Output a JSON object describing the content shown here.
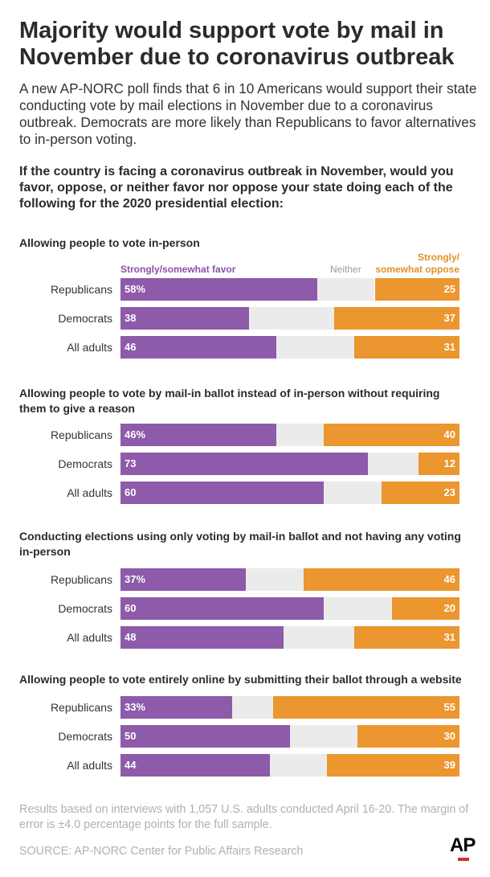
{
  "title": "Majority would support vote by mail in November due to coronavirus outbreak",
  "intro": "A new AP-NORC poll finds that 6 in 10 Americans would support their state conducting vote by mail elections in November due to a coronavirus outbreak. Democrats are more likely than Republicans to favor alternatives to in-person voting.",
  "question": "If the country is facing a coronavirus outbreak in November, would you favor, oppose, or neither favor nor oppose your state doing each of the following for the 2020 presidential election:",
  "legend": {
    "favor": "Strongly/somewhat favor",
    "neither": "Neither",
    "oppose_line1": "Strongly/",
    "oppose_line2": "somewhat oppose"
  },
  "colors": {
    "favor": "#8e5aaa",
    "neither": "#ebebeb",
    "oppose": "#eb962f"
  },
  "chart_data": {
    "type": "bar",
    "stacked": true,
    "orientation": "horizontal",
    "scale_max": 100,
    "series_names": [
      "Strongly/somewhat favor",
      "Neither",
      "Strongly/somewhat oppose"
    ],
    "panels": [
      {
        "title": "Allowing people to vote in-person",
        "rows": [
          {
            "label": "Republicans",
            "favor": 58,
            "neither": 17,
            "oppose": 25,
            "favor_label": "58%",
            "oppose_label": "25"
          },
          {
            "label": "Democrats",
            "favor": 38,
            "neither": 25,
            "oppose": 37,
            "favor_label": "38",
            "oppose_label": "37"
          },
          {
            "label": "All adults",
            "favor": 46,
            "neither": 23,
            "oppose": 31,
            "favor_label": "46",
            "oppose_label": "31"
          }
        ]
      },
      {
        "title": "Allowing people to vote by mail-in ballot instead of in-person without requiring them to give a reason",
        "rows": [
          {
            "label": "Republicans",
            "favor": 46,
            "neither": 14,
            "oppose": 40,
            "favor_label": "46%",
            "oppose_label": "40"
          },
          {
            "label": "Democrats",
            "favor": 73,
            "neither": 15,
            "oppose": 12,
            "favor_label": "73",
            "oppose_label": "12"
          },
          {
            "label": "All adults",
            "favor": 60,
            "neither": 17,
            "oppose": 23,
            "favor_label": "60",
            "oppose_label": "23"
          }
        ]
      },
      {
        "title": "Conducting elections using only voting by mail-in ballot and not having any voting in-person",
        "rows": [
          {
            "label": "Republicans",
            "favor": 37,
            "neither": 17,
            "oppose": 46,
            "favor_label": "37%",
            "oppose_label": "46"
          },
          {
            "label": "Democrats",
            "favor": 60,
            "neither": 20,
            "oppose": 20,
            "favor_label": "60",
            "oppose_label": "20"
          },
          {
            "label": "All adults",
            "favor": 48,
            "neither": 21,
            "oppose": 31,
            "favor_label": "48",
            "oppose_label": "31"
          }
        ]
      },
      {
        "title": "Allowing people to vote entirely online by submitting their ballot through a website",
        "rows": [
          {
            "label": "Republicans",
            "favor": 33,
            "neither": 12,
            "oppose": 55,
            "favor_label": "33%",
            "oppose_label": "55"
          },
          {
            "label": "Democrats",
            "favor": 50,
            "neither": 20,
            "oppose": 30,
            "favor_label": "50",
            "oppose_label": "30"
          },
          {
            "label": "All adults",
            "favor": 44,
            "neither": 17,
            "oppose": 39,
            "favor_label": "44",
            "oppose_label": "39"
          }
        ]
      }
    ]
  },
  "footnote": "Results based on interviews with 1,057 U.S. adults conducted April 16-20. The margin of error is ±4.0 percentage points for the full sample.",
  "source": "SOURCE: AP-NORC Center for Public Affairs Research",
  "logo": "AP"
}
